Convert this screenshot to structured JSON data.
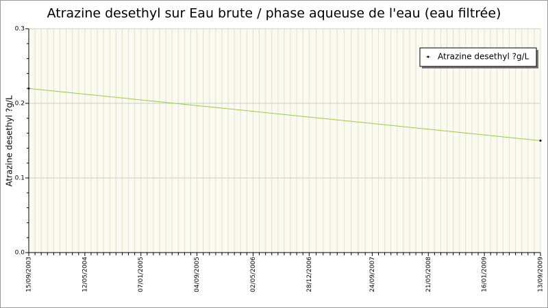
{
  "chart_data": {
    "type": "line",
    "title": "Atrazine desethyl sur Eau brute / phase aqueuse de l'eau (eau filtrée)",
    "y_label": "Atrazine desethyl ?g/L",
    "x": [
      "15/09/2003",
      "13/09/2009"
    ],
    "series": [
      {
        "name": "Atrazine desethyl ?g/L",
        "color": "#99cc33",
        "values": [
          0.22,
          0.15
        ]
      }
    ],
    "xlim": [
      "15/09/2003",
      "13/09/2009"
    ],
    "xticks": [
      "15/09/2003",
      "12/05/2004",
      "07/01/2005",
      "04/09/2005",
      "02/05/2006",
      "28/12/2006",
      "24/09/2007",
      "21/05/2008",
      "16/01/2009",
      "13/09/2009"
    ],
    "ylim": [
      0,
      0.3
    ],
    "yticks": [
      {
        "value": 0,
        "label": "0.0"
      },
      0.1,
      0.2,
      0.3
    ],
    "grid": true,
    "legend": "top-right"
  }
}
